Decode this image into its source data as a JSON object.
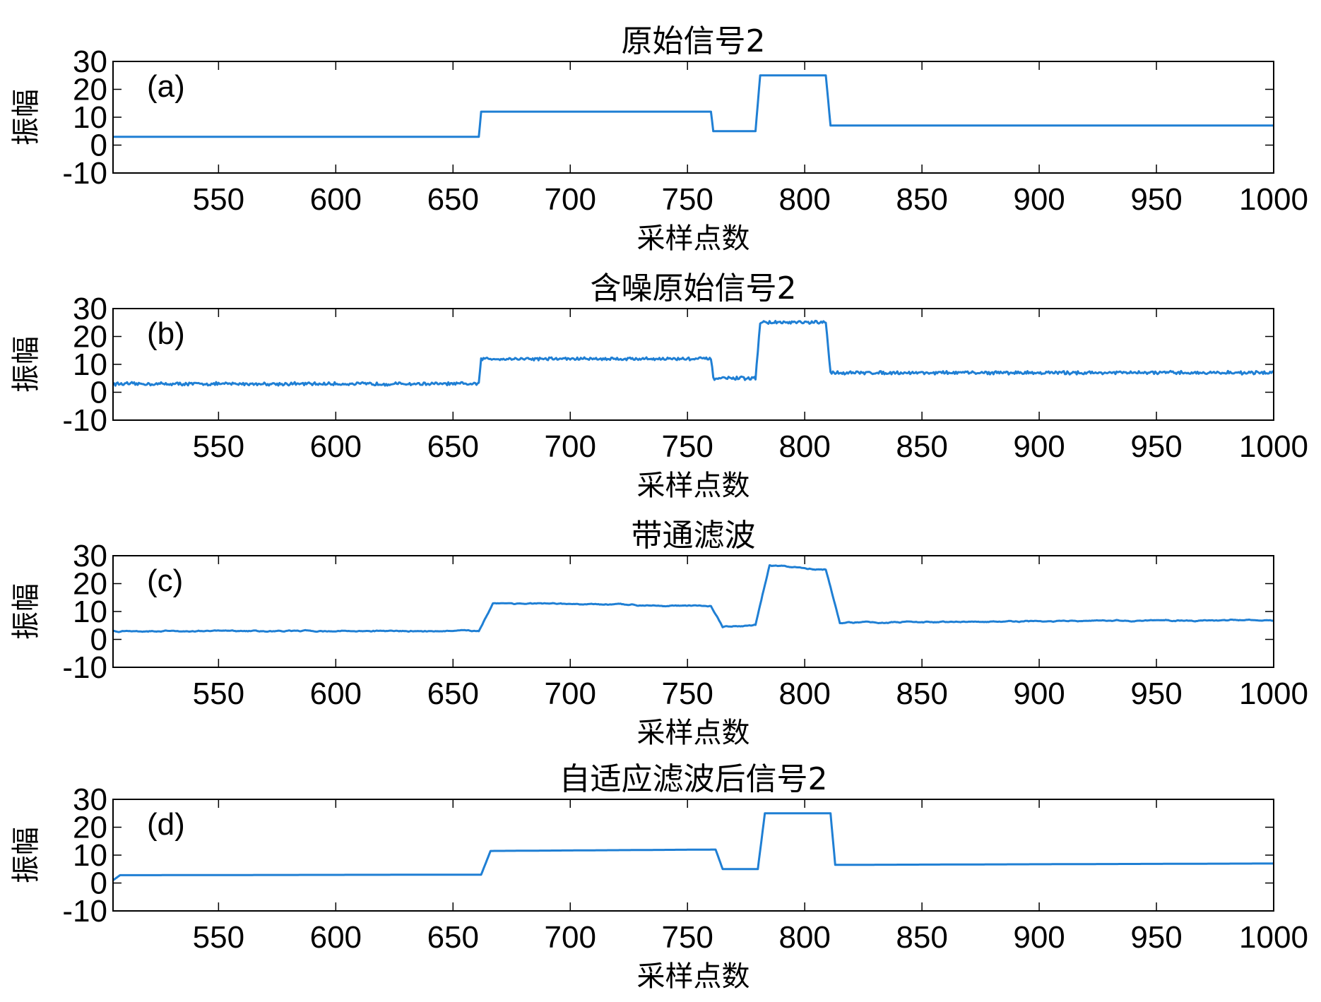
{
  "chart_data": [
    {
      "type": "line",
      "panel_label": "(a)",
      "title": "原始信号2",
      "xlabel": "采样点数",
      "ylabel": "振幅",
      "xlim": [
        505,
        1000
      ],
      "ylim": [
        -10,
        30
      ],
      "xticks": [
        550,
        600,
        650,
        700,
        750,
        800,
        850,
        900,
        950,
        1000
      ],
      "yticks": [
        30,
        20,
        10,
        0,
        -10
      ],
      "color": "#1f7fd4",
      "noise": 0,
      "smooth": 0,
      "series": [
        {
          "x": [
            505,
            661,
            662,
            760,
            761,
            779,
            781,
            809,
            811,
            1000
          ],
          "values": [
            3,
            3,
            12,
            12,
            5,
            5,
            25,
            25,
            7,
            7
          ]
        }
      ]
    },
    {
      "type": "line",
      "panel_label": "(b)",
      "title": "含噪原始信号2",
      "xlabel": "采样点数",
      "ylabel": "振幅",
      "xlim": [
        505,
        1000
      ],
      "ylim": [
        -10,
        30
      ],
      "xticks": [
        550,
        600,
        650,
        700,
        750,
        800,
        850,
        900,
        950,
        1000
      ],
      "yticks": [
        30,
        20,
        10,
        0,
        -10
      ],
      "color": "#1f7fd4",
      "noise": 0.45,
      "smooth": 0,
      "series": [
        {
          "x": [
            505,
            661,
            662,
            760,
            761,
            779,
            781,
            809,
            811,
            1000
          ],
          "values": [
            3,
            3,
            12,
            12,
            5,
            5,
            25,
            25,
            7,
            7
          ]
        }
      ]
    },
    {
      "type": "line",
      "panel_label": "(c)",
      "title": "带通滤波",
      "xlabel": "采样点数",
      "ylabel": "振幅",
      "xlim": [
        505,
        1000
      ],
      "ylim": [
        -10,
        30
      ],
      "xticks": [
        550,
        600,
        650,
        700,
        750,
        800,
        850,
        900,
        950,
        1000
      ],
      "yticks": [
        30,
        20,
        10,
        0,
        -10
      ],
      "color": "#1f7fd4",
      "noise": 0.3,
      "smooth": 1,
      "series": [
        {
          "x": [
            505,
            661,
            667,
            760,
            765,
            779,
            785,
            809,
            815,
            1000
          ],
          "values": [
            3,
            3,
            13,
            12,
            4.5,
            5,
            26.5,
            25,
            6,
            7
          ]
        }
      ]
    },
    {
      "type": "line",
      "panel_label": "(d)",
      "title": "自适应滤波后信号2",
      "xlabel": "采样点数",
      "ylabel": "振幅",
      "xlim": [
        505,
        1000
      ],
      "ylim": [
        -10,
        30
      ],
      "xticks": [
        550,
        600,
        650,
        700,
        750,
        800,
        850,
        900,
        950,
        1000
      ],
      "yticks": [
        30,
        20,
        10,
        0,
        -10
      ],
      "color": "#1f7fd4",
      "noise": 0,
      "smooth": 0,
      "series": [
        {
          "x": [
            505,
            508,
            662,
            666,
            762,
            765,
            780,
            783,
            811,
            813,
            1000
          ],
          "values": [
            1,
            2.8,
            3,
            11.5,
            12,
            5,
            5,
            25,
            25,
            6.5,
            7
          ]
        }
      ]
    }
  ]
}
